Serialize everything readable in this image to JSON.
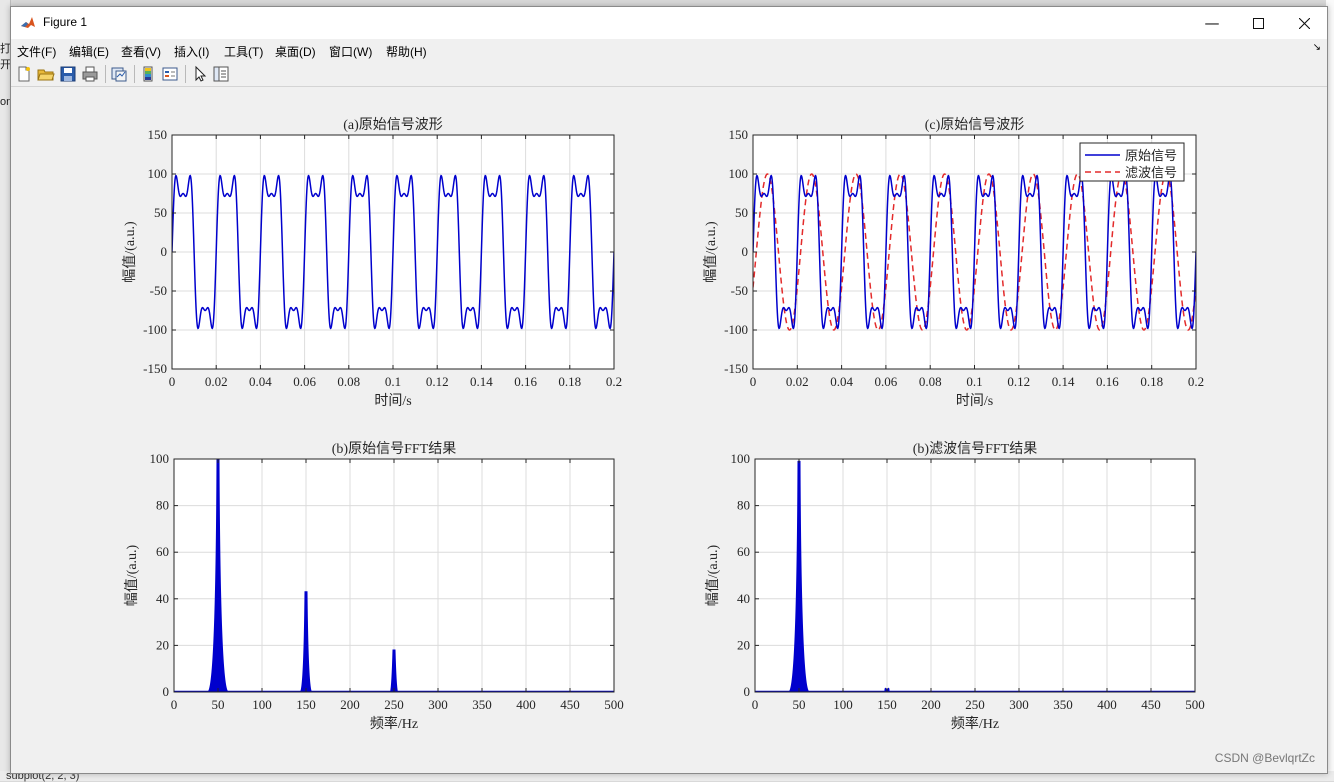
{
  "background": {
    "left_fragments": [
      "打开",
      "on"
    ],
    "bottom_text": "subplot(2, 2, 3)"
  },
  "window": {
    "title": "Figure 1"
  },
  "menu": [
    {
      "label": "文件(F)"
    },
    {
      "label": "编辑(E)"
    },
    {
      "label": "查看(V)"
    },
    {
      "label": "插入(I)"
    },
    {
      "label": "工具(T)"
    },
    {
      "label": "桌面(D)"
    },
    {
      "label": "窗口(W)"
    },
    {
      "label": "帮助(H)"
    }
  ],
  "toolbar_icons": [
    "new-figure-icon",
    "open-file-icon",
    "save-icon",
    "print-icon",
    "link-plot-icon",
    "colorbar-icon",
    "legend-icon",
    "edit-plot-icon",
    "property-inspector-icon"
  ],
  "watermark": "CSDN @BevlqrtZc",
  "colors": {
    "original": "#0000cd",
    "filtered": "#e32b2b",
    "grid": "#dcdcdc"
  },
  "chart_data": [
    {
      "type": "line",
      "title": "(a)原始信号波形",
      "xlabel": "时间/s",
      "ylabel": "幅值/(a.u.)",
      "xlim": [
        0,
        0.2
      ],
      "ylim": [
        -150,
        150
      ],
      "xticks": [
        0,
        0.02,
        0.04,
        0.06,
        0.08,
        0.1,
        0.12,
        0.14,
        0.16,
        0.18,
        0.2
      ],
      "xticklabels": [
        "0",
        "0.02",
        "0.04",
        "0.06",
        "0.08",
        "0.1",
        "0.12",
        "0.14",
        "0.16",
        "0.18",
        "0.2"
      ],
      "yticks": [
        -150,
        -100,
        -50,
        0,
        50,
        100,
        150
      ],
      "grid": true,
      "series": [
        {
          "signal": "100*sin(2*pi*50*t) + 40*sin(2*pi*150*t) + 15*sin(2*pi*250*t)",
          "color": "#0000cd",
          "style": "solid"
        }
      ]
    },
    {
      "type": "line",
      "title": "(c)原始信号波形",
      "xlabel": "时间/s",
      "ylabel": "幅值/(a.u.)",
      "xlim": [
        0,
        0.2
      ],
      "ylim": [
        -150,
        150
      ],
      "xticks": [
        0,
        0.02,
        0.04,
        0.06,
        0.08,
        0.1,
        0.12,
        0.14,
        0.16,
        0.18,
        0.2
      ],
      "xticklabels": [
        "0",
        "0.02",
        "0.04",
        "0.06",
        "0.08",
        "0.1",
        "0.12",
        "0.14",
        "0.16",
        "0.18",
        "0.2"
      ],
      "yticks": [
        -150,
        -100,
        -50,
        0,
        50,
        100,
        150
      ],
      "grid": true,
      "legend": {
        "position": "top-right",
        "entries": [
          "原始信号",
          "滤波信号"
        ]
      },
      "series": [
        {
          "name": "原始信号",
          "signal": "100*sin(2*pi*50*t) + 40*sin(2*pi*150*t) + 15*sin(2*pi*250*t)",
          "color": "#0000cd",
          "style": "solid"
        },
        {
          "name": "滤波信号",
          "signal": "100*sin(2*pi*50*(t-0.0015))",
          "color": "#e32b2b",
          "style": "dashed"
        }
      ]
    },
    {
      "type": "bar",
      "title": "(b)原始信号FFT结果",
      "xlabel": "频率/Hz",
      "ylabel": "幅值/(a.u.)",
      "xlim": [
        0,
        500
      ],
      "ylim": [
        0,
        100
      ],
      "xticks": [
        0,
        50,
        100,
        150,
        200,
        250,
        300,
        350,
        400,
        450,
        500
      ],
      "yticks": [
        0,
        20,
        40,
        60,
        80,
        100
      ],
      "grid": true,
      "peaks": [
        {
          "x": 50,
          "y": 100
        },
        {
          "x": 150,
          "y": 43
        },
        {
          "x": 250,
          "y": 18
        }
      ],
      "color": "#0000cd"
    },
    {
      "type": "bar",
      "title": "(b)滤波信号FFT结果",
      "xlabel": "频率/Hz",
      "ylabel": "幅值/(a.u.)",
      "xlim": [
        0,
        500
      ],
      "ylim": [
        0,
        100
      ],
      "xticks": [
        0,
        50,
        100,
        150,
        200,
        250,
        300,
        350,
        400,
        450,
        500
      ],
      "yticks": [
        0,
        20,
        40,
        60,
        80,
        100
      ],
      "grid": true,
      "peaks": [
        {
          "x": 50,
          "y": 99
        },
        {
          "x": 150,
          "y": 1
        }
      ],
      "color": "#0000cd"
    }
  ]
}
